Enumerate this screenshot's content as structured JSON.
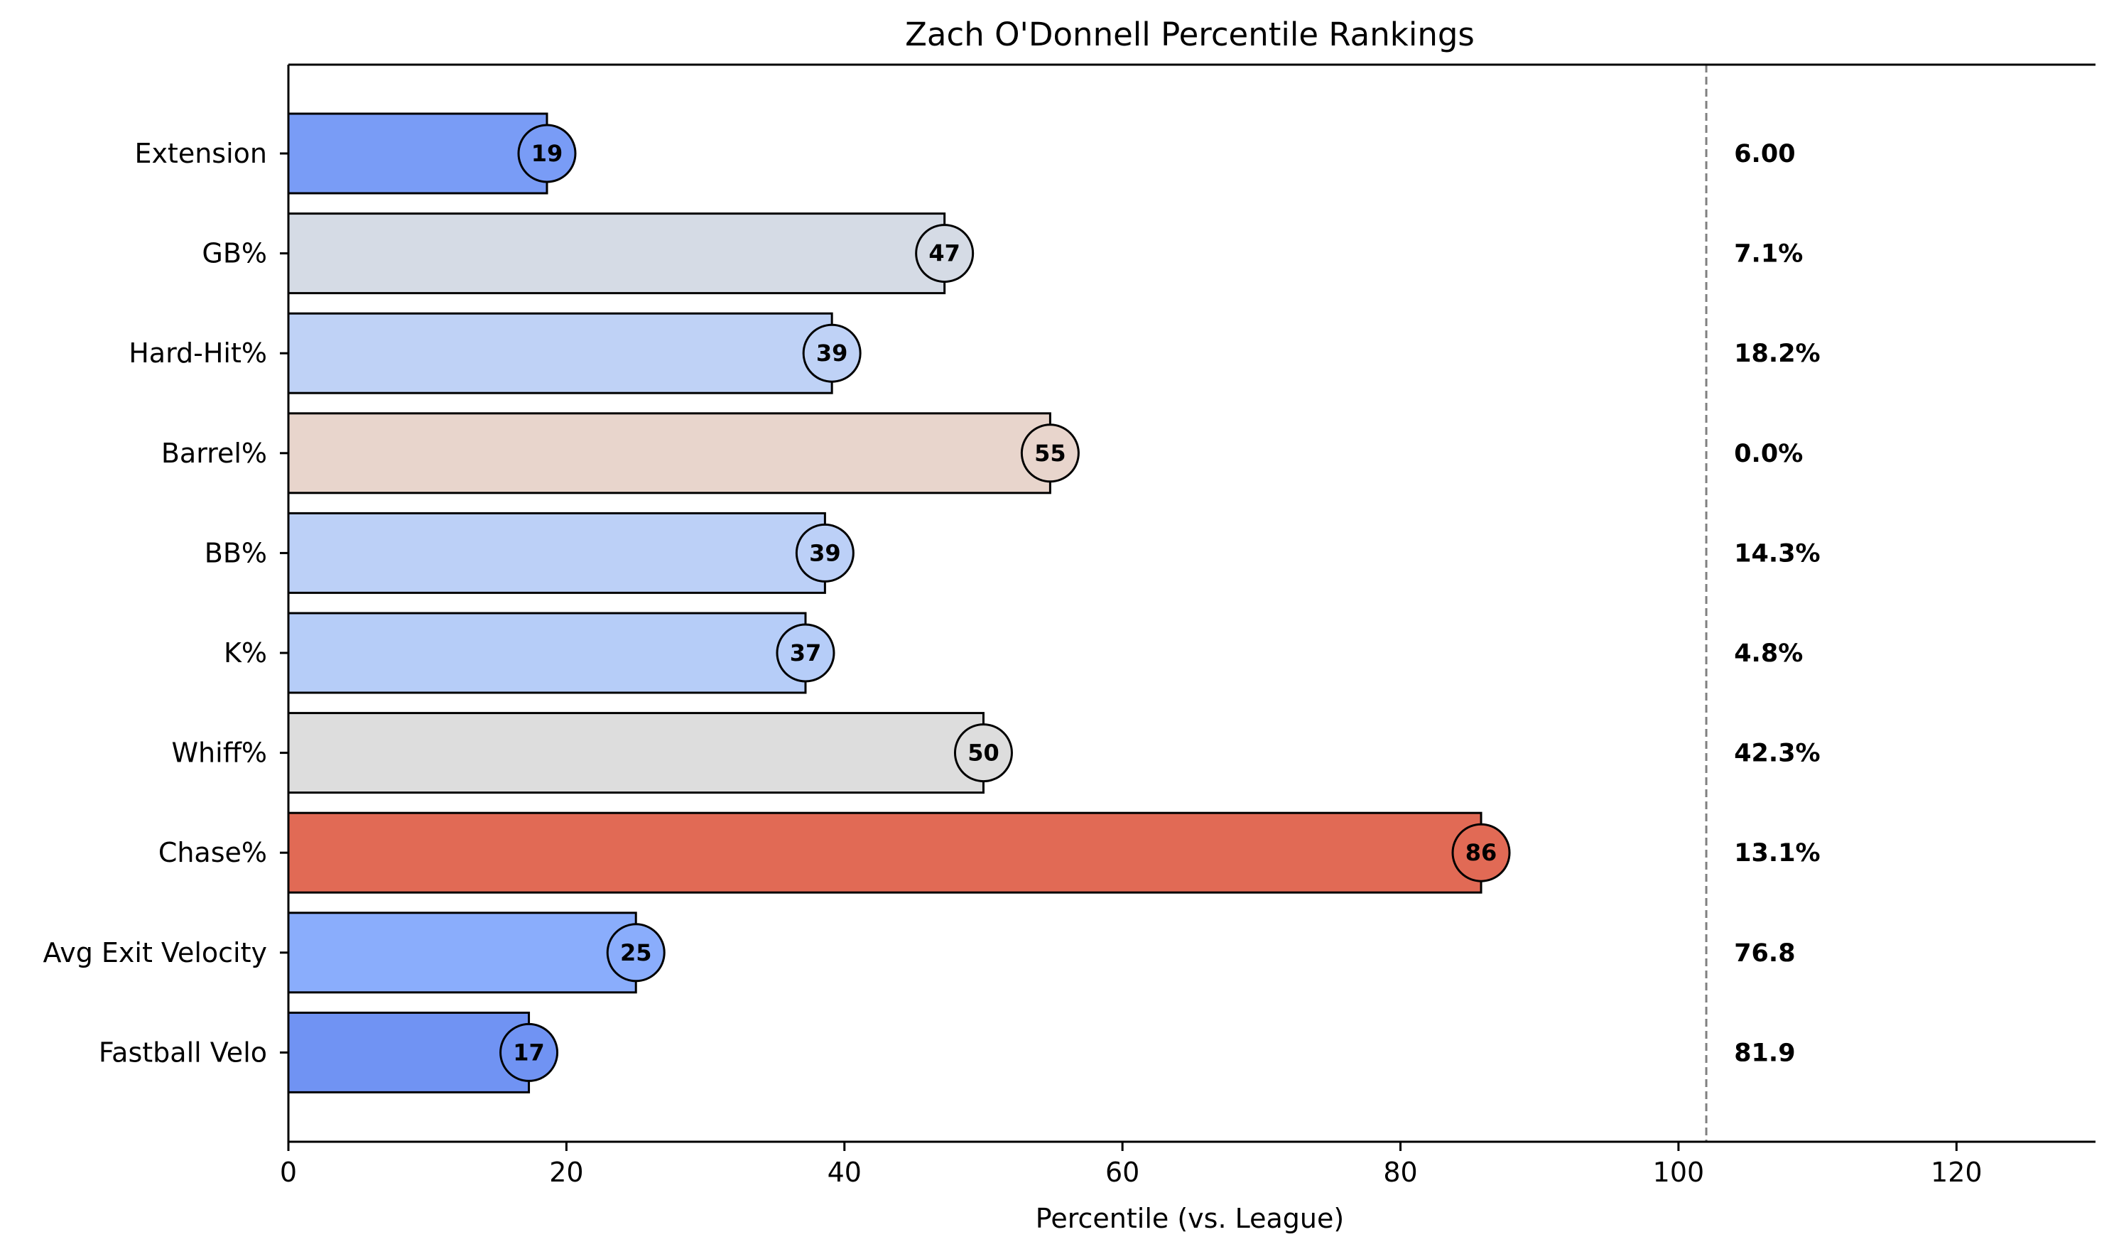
{
  "chart_data": {
    "type": "bar",
    "orientation": "horizontal",
    "title": "Zach O'Donnell Percentile Rankings",
    "xlabel": "Percentile (vs. League)",
    "ylabel": "",
    "xlim": [
      0,
      130
    ],
    "xticks": [
      "0",
      "20",
      "40",
      "60",
      "80",
      "100",
      "120"
    ],
    "reference_line": 102,
    "grid": false,
    "categories": [
      "Extension",
      "GB%",
      "Hard-Hit%",
      "Barrel%",
      "BB%",
      "K%",
      "Whiff%",
      "Chase%",
      "Avg Exit Velocity",
      "Fastball Velo"
    ],
    "values": [
      18.6,
      47.2,
      39.1,
      54.8,
      38.6,
      37.2,
      50.0,
      85.8,
      25.0,
      17.3
    ],
    "percentile_labels": [
      "19",
      "47",
      "39",
      "55",
      "39",
      "37",
      "50",
      "86",
      "25",
      "17"
    ],
    "raw_values": [
      "6.00",
      "7.1%",
      "18.2%",
      "0.0%",
      "14.3%",
      "4.8%",
      "42.3%",
      "13.1%",
      "76.8",
      "81.9"
    ],
    "colors": [
      "#799cf6",
      "#d5dbe5",
      "#bfd2f6",
      "#e8d5cc",
      "#bcd0f7",
      "#b6cdf8",
      "#dddddd",
      "#e16a55",
      "#8aadfc",
      "#7093f3"
    ]
  }
}
